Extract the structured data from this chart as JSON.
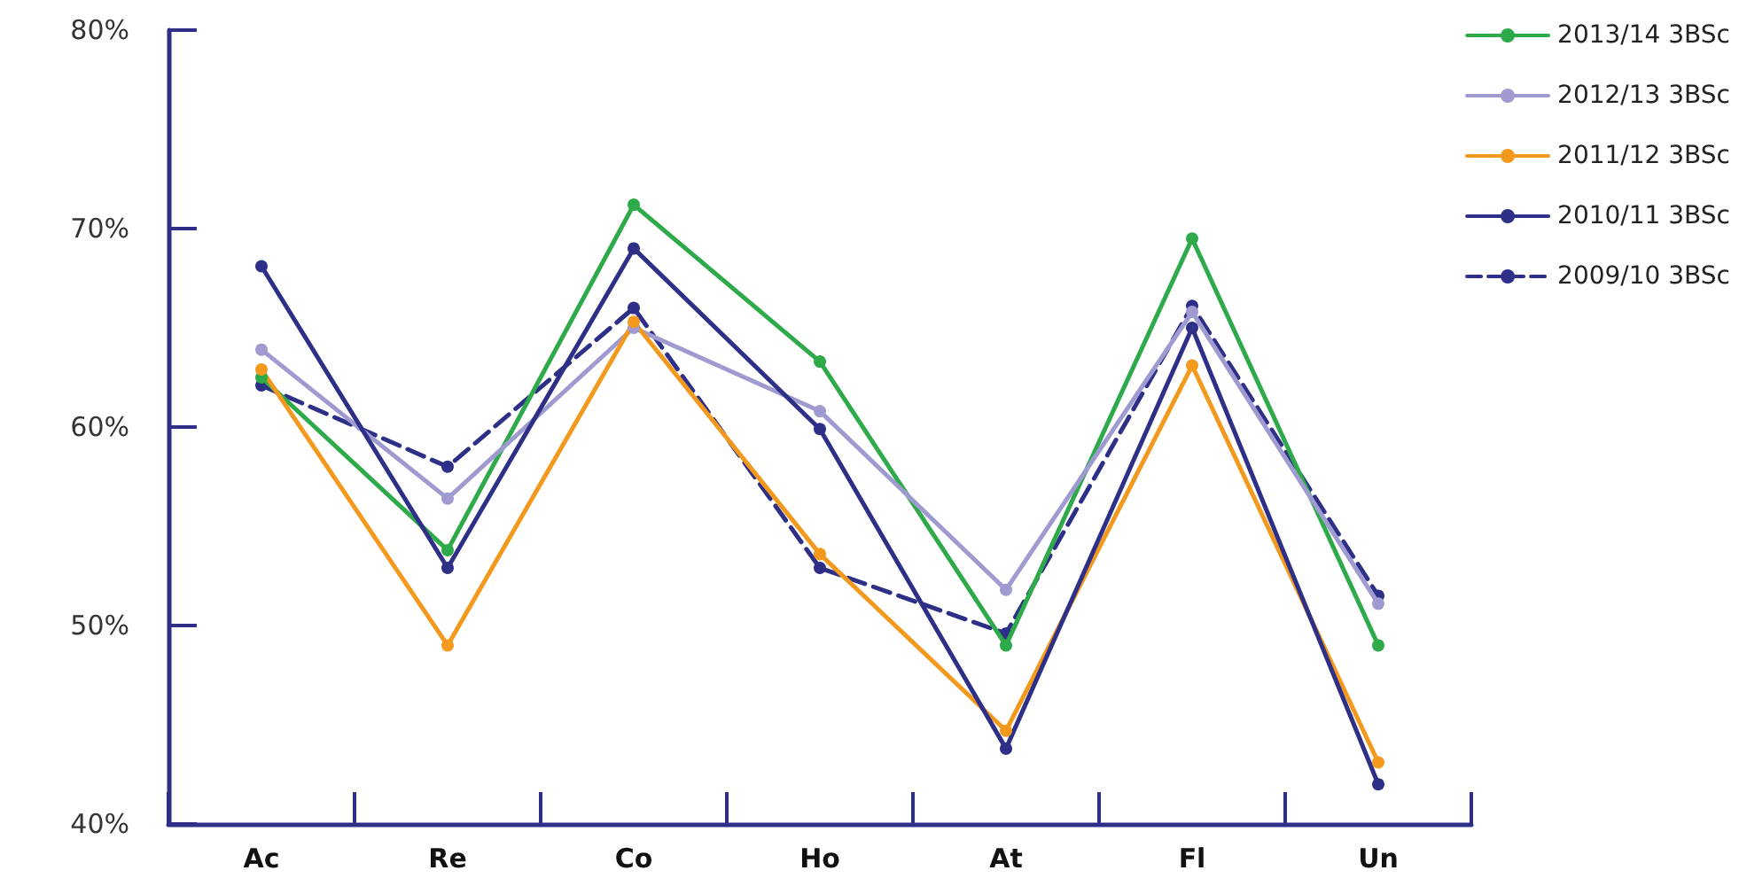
{
  "chart_data": {
    "type": "line",
    "categories": [
      "Ac",
      "Re",
      "Co",
      "Ho",
      "At",
      "Fl",
      "Un"
    ],
    "series": [
      {
        "name": "2013/14 3BSc",
        "color": "#2eaa4a",
        "values": [
          62.5,
          53.8,
          71.2,
          63.3,
          49.0,
          69.5,
          49.0
        ]
      },
      {
        "name": "2012/13 3BSc",
        "color": "#9f9bd0",
        "values": [
          63.9,
          56.4,
          65.0,
          60.8,
          51.8,
          65.8,
          51.1
        ]
      },
      {
        "name": "2011/12 3BSc",
        "color": "#f39a1e",
        "values": [
          62.9,
          49.0,
          65.3,
          53.6,
          44.7,
          63.1,
          43.1
        ]
      },
      {
        "name": "2010/11 3BSc",
        "color": "#2e3087",
        "values": [
          68.1,
          52.9,
          69.0,
          59.9,
          43.8,
          65.0,
          42.0
        ]
      },
      {
        "name": "2009/10 3BSc",
        "color": "#2e3087",
        "line_style": "dashed",
        "values": [
          62.1,
          58.0,
          66.0,
          52.9,
          49.6,
          66.1,
          51.5
        ]
      }
    ],
    "ylim": [
      40,
      80
    ],
    "yticks": [
      {
        "value": 40,
        "label": "40%"
      },
      {
        "value": 50,
        "label": "50%"
      },
      {
        "value": 60,
        "label": "60%"
      },
      {
        "value": 70,
        "label": "70%"
      },
      {
        "value": 80,
        "label": "80%"
      }
    ],
    "grid": false,
    "legend": "top right",
    "marker": "circle",
    "line_style": "solid"
  }
}
